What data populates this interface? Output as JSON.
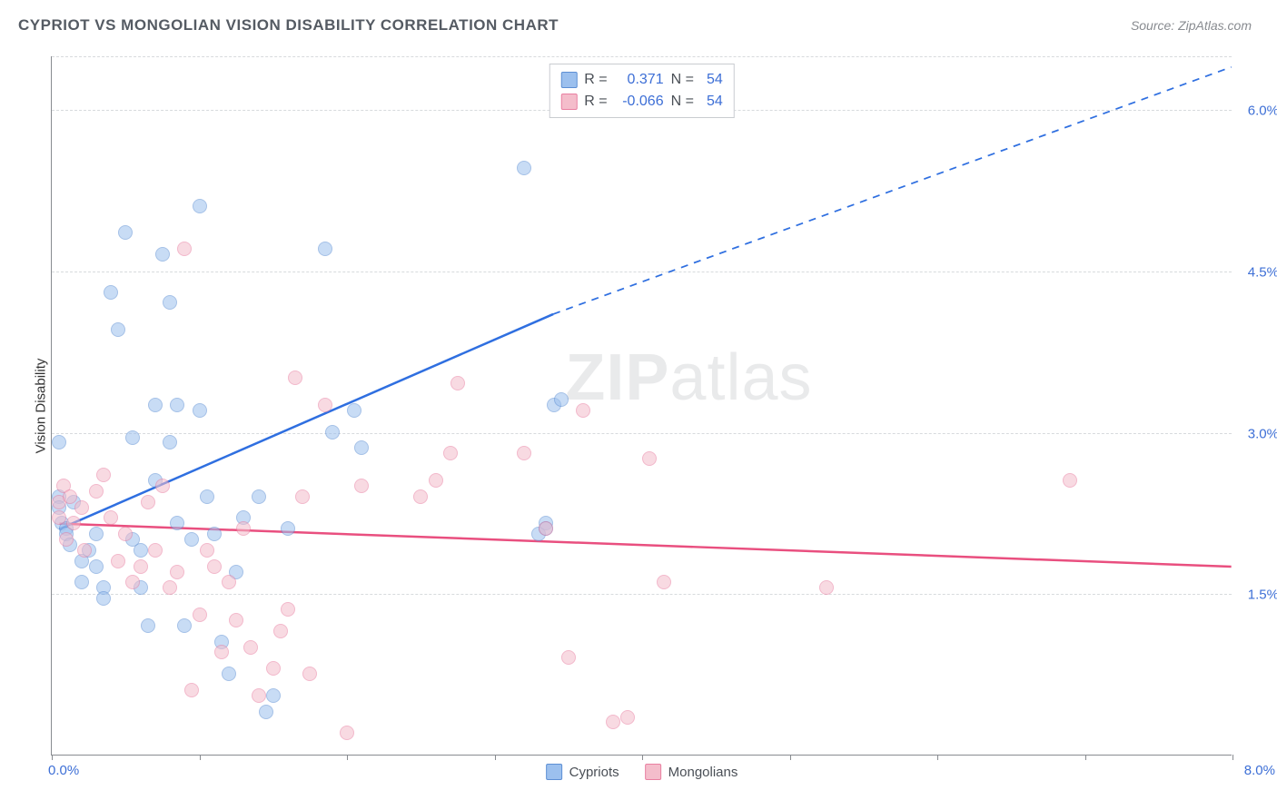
{
  "header": {
    "title": "CYPRIOT VS MONGOLIAN VISION DISABILITY CORRELATION CHART",
    "source": "Source: ZipAtlas.com"
  },
  "chart": {
    "type": "scatter",
    "ylabel": "Vision Disability",
    "watermark": "ZIPatlas",
    "background_color": "#ffffff",
    "grid_color": "#d7dadd",
    "axis_color": "#888b90",
    "tick_label_color": "#3d6fd6",
    "xlim": [
      0.0,
      8.0
    ],
    "ylim": [
      0.0,
      6.5
    ],
    "x_tick_positions": [
      0.0,
      1.0,
      2.0,
      3.0,
      4.0,
      5.0,
      6.0,
      7.0,
      8.0
    ],
    "x_tick_labels": {
      "left": "0.0%",
      "right": "8.0%"
    },
    "y_gridlines": [
      {
        "value": 1.5,
        "label": "1.5%"
      },
      {
        "value": 3.0,
        "label": "3.0%"
      },
      {
        "value": 4.5,
        "label": "4.5%"
      },
      {
        "value": 6.0,
        "label": "6.0%"
      }
    ],
    "marker_radius": 8,
    "marker_opacity": 0.55,
    "series": [
      {
        "name": "Cypriots",
        "color_fill": "#9cc0ee",
        "color_stroke": "#5d8fd4",
        "r": 0.371,
        "n": 54,
        "trend": {
          "x1": 0.05,
          "y1": 2.1,
          "x2": 3.4,
          "y2": 4.1,
          "extrap_x2": 8.0,
          "extrap_y2": 6.4,
          "width": 2.5,
          "color": "#2f6fe0"
        },
        "points": [
          [
            0.05,
            2.9
          ],
          [
            0.05,
            2.4
          ],
          [
            0.05,
            2.3
          ],
          [
            0.07,
            2.15
          ],
          [
            0.1,
            2.1
          ],
          [
            0.1,
            2.05
          ],
          [
            0.12,
            1.95
          ],
          [
            0.15,
            2.35
          ],
          [
            0.2,
            1.8
          ],
          [
            0.2,
            1.6
          ],
          [
            0.25,
            1.9
          ],
          [
            0.3,
            2.05
          ],
          [
            0.3,
            1.75
          ],
          [
            0.35,
            1.55
          ],
          [
            0.35,
            1.45
          ],
          [
            0.4,
            4.3
          ],
          [
            0.45,
            3.95
          ],
          [
            0.5,
            4.85
          ],
          [
            0.55,
            2.95
          ],
          [
            0.55,
            2.0
          ],
          [
            0.6,
            1.9
          ],
          [
            0.6,
            1.55
          ],
          [
            0.65,
            1.2
          ],
          [
            0.7,
            3.25
          ],
          [
            0.7,
            2.55
          ],
          [
            0.75,
            4.65
          ],
          [
            0.8,
            4.2
          ],
          [
            0.8,
            2.9
          ],
          [
            0.85,
            3.25
          ],
          [
            0.85,
            2.15
          ],
          [
            0.9,
            1.2
          ],
          [
            0.95,
            2.0
          ],
          [
            1.0,
            5.1
          ],
          [
            1.0,
            3.2
          ],
          [
            1.05,
            2.4
          ],
          [
            1.1,
            2.05
          ],
          [
            1.15,
            1.05
          ],
          [
            1.2,
            0.75
          ],
          [
            1.25,
            1.7
          ],
          [
            1.3,
            2.2
          ],
          [
            1.4,
            2.4
          ],
          [
            1.45,
            0.4
          ],
          [
            1.5,
            0.55
          ],
          [
            1.6,
            2.1
          ],
          [
            1.85,
            4.7
          ],
          [
            1.9,
            3.0
          ],
          [
            2.05,
            3.2
          ],
          [
            2.1,
            2.85
          ],
          [
            3.2,
            5.45
          ],
          [
            3.3,
            2.05
          ],
          [
            3.35,
            2.15
          ],
          [
            3.4,
            3.25
          ],
          [
            3.45,
            3.3
          ],
          [
            3.35,
            2.1
          ]
        ]
      },
      {
        "name": "Mongolians",
        "color_fill": "#f4bdcb",
        "color_stroke": "#e97fa1",
        "r": -0.066,
        "n": 54,
        "trend": {
          "x1": 0.05,
          "y1": 2.15,
          "x2": 8.0,
          "y2": 1.75,
          "width": 2.5,
          "color": "#e94f7f"
        },
        "points": [
          [
            0.05,
            2.35
          ],
          [
            0.05,
            2.2
          ],
          [
            0.08,
            2.5
          ],
          [
            0.1,
            2.0
          ],
          [
            0.12,
            2.4
          ],
          [
            0.15,
            2.15
          ],
          [
            0.2,
            2.3
          ],
          [
            0.22,
            1.9
          ],
          [
            0.3,
            2.45
          ],
          [
            0.35,
            2.6
          ],
          [
            0.4,
            2.2
          ],
          [
            0.45,
            1.8
          ],
          [
            0.5,
            2.05
          ],
          [
            0.55,
            1.6
          ],
          [
            0.6,
            1.75
          ],
          [
            0.65,
            2.35
          ],
          [
            0.7,
            1.9
          ],
          [
            0.75,
            2.5
          ],
          [
            0.8,
            1.55
          ],
          [
            0.85,
            1.7
          ],
          [
            0.9,
            4.7
          ],
          [
            0.95,
            0.6
          ],
          [
            1.0,
            1.3
          ],
          [
            1.05,
            1.9
          ],
          [
            1.1,
            1.75
          ],
          [
            1.15,
            0.95
          ],
          [
            1.2,
            1.6
          ],
          [
            1.25,
            1.25
          ],
          [
            1.3,
            2.1
          ],
          [
            1.35,
            1.0
          ],
          [
            1.4,
            0.55
          ],
          [
            1.5,
            0.8
          ],
          [
            1.55,
            1.15
          ],
          [
            1.65,
            3.5
          ],
          [
            1.7,
            2.4
          ],
          [
            1.75,
            0.75
          ],
          [
            1.85,
            3.25
          ],
          [
            2.0,
            0.2
          ],
          [
            2.1,
            2.5
          ],
          [
            2.5,
            2.4
          ],
          [
            2.6,
            2.55
          ],
          [
            2.7,
            2.8
          ],
          [
            2.75,
            3.45
          ],
          [
            3.2,
            2.8
          ],
          [
            3.35,
            2.1
          ],
          [
            3.5,
            0.9
          ],
          [
            3.8,
            0.3
          ],
          [
            3.9,
            0.35
          ],
          [
            4.05,
            2.75
          ],
          [
            4.15,
            1.6
          ],
          [
            5.25,
            1.55
          ],
          [
            6.9,
            2.55
          ],
          [
            3.6,
            3.2
          ],
          [
            1.6,
            1.35
          ]
        ]
      }
    ],
    "stats_box": {
      "r_label": "R =",
      "n_label": "N ="
    },
    "legend": [
      "Cypriots",
      "Mongolians"
    ]
  }
}
